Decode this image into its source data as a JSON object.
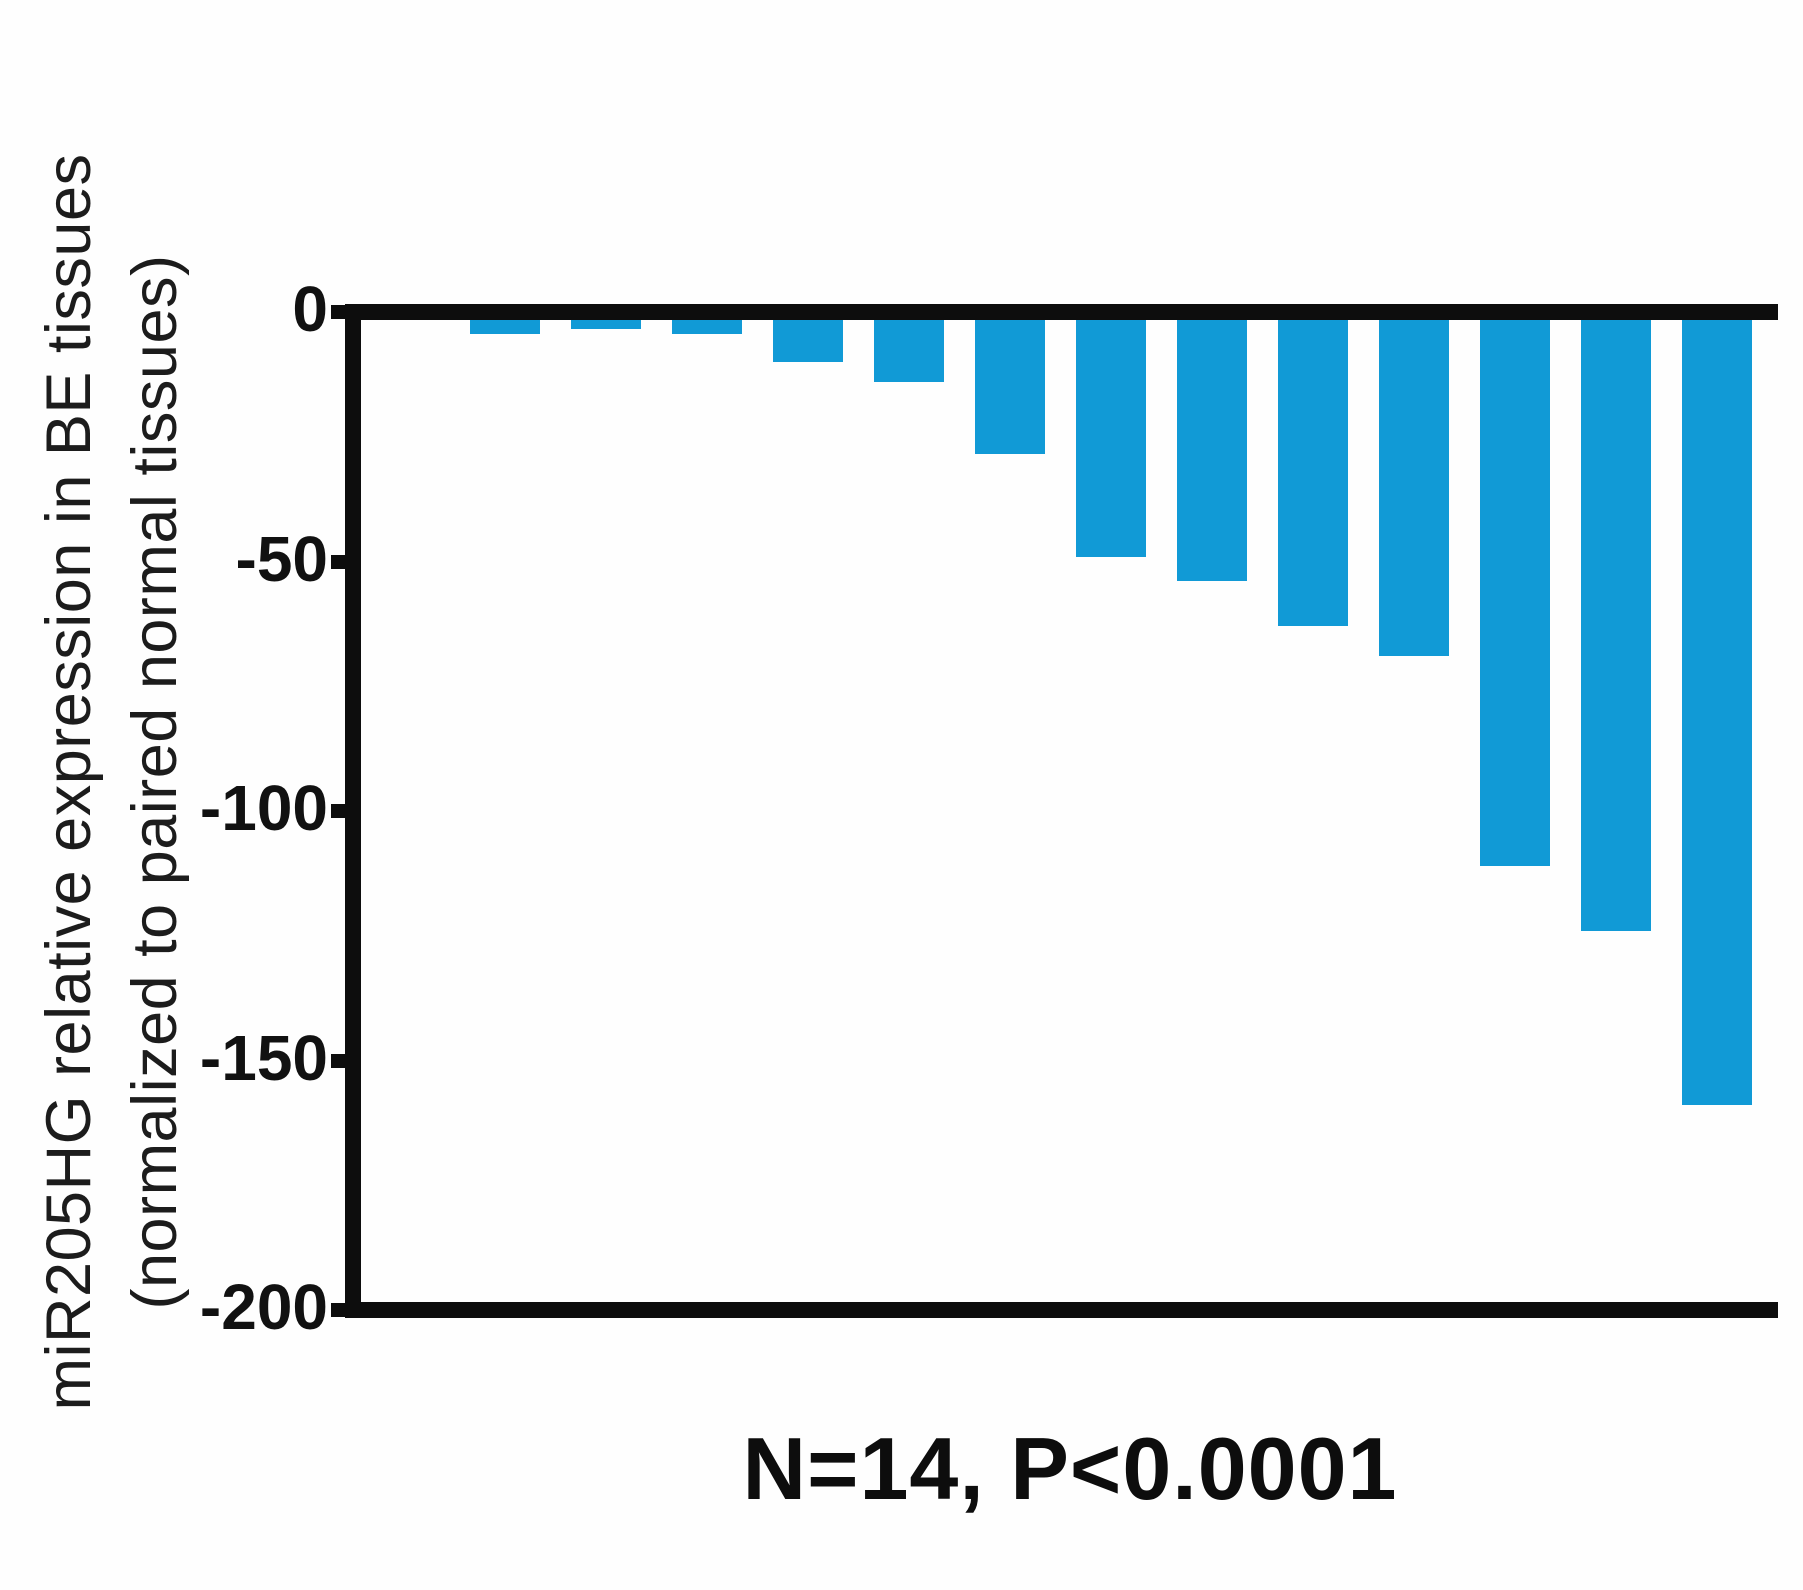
{
  "figure": {
    "ylabel_line1": "miR205HG relative expression in BE tissues",
    "ylabel_line2": "(normalized to paired normal tissues)",
    "stats_annotation": "N=14, P<0.0001"
  },
  "chart_data": {
    "type": "bar",
    "orientation": "vertical",
    "n_samples": 14,
    "values": [
      -0.8,
      -4.5,
      -3.5,
      -4.5,
      -10,
      -14,
      -28.5,
      -49,
      -54,
      -63,
      -69,
      -111,
      -124,
      -159
    ],
    "ylabel": "miR205HG relative expression in BE tissues (normalized to paired normal tissues)",
    "annotation": "N=14, P<0.0001",
    "yticks": [
      0,
      -50,
      -100,
      -150,
      -200
    ],
    "ylim": [
      0,
      -200
    ],
    "grid": false,
    "legend": false,
    "bar_color": "#119AD6",
    "axis_color": "#0D0D0D",
    "background_color": "#FEFEFE"
  }
}
